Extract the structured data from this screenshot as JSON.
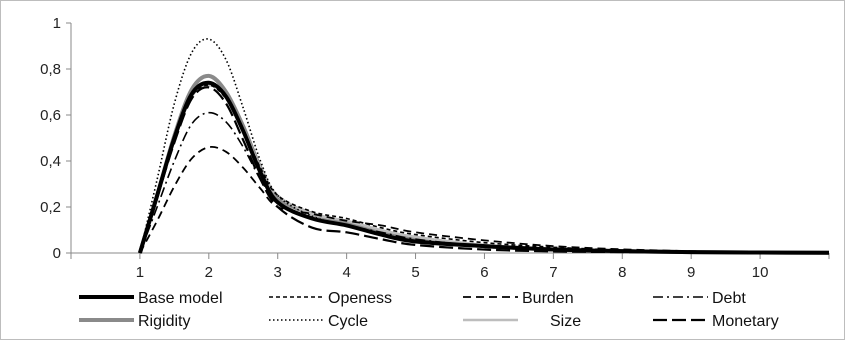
{
  "chart_data": {
    "type": "line",
    "title": "",
    "xlabel": "",
    "ylabel": "",
    "x_ticks": [
      "1",
      "2",
      "3",
      "4",
      "5",
      "6",
      "7",
      "8",
      "9",
      "10"
    ],
    "y_ticks": [
      "0",
      "0,2",
      "0,4",
      "0,6",
      "0,8",
      "1"
    ],
    "ylim": [
      0,
      1
    ],
    "xlim": [
      0,
      11
    ],
    "grid": false,
    "legend_position": "bottom",
    "series": [
      {
        "name": "Base model",
        "style": "solid-thick",
        "color": "#000000",
        "x": [
          1,
          1.25,
          1.5,
          1.75,
          2,
          2.25,
          2.5,
          2.75,
          3,
          3.5,
          4,
          4.5,
          5,
          6,
          7,
          8,
          9,
          10,
          11
        ],
        "y": [
          0,
          0.25,
          0.5,
          0.69,
          0.74,
          0.68,
          0.53,
          0.35,
          0.22,
          0.15,
          0.12,
          0.08,
          0.05,
          0.03,
          0.015,
          0.008,
          0.004,
          0.002,
          0.001
        ]
      },
      {
        "name": "Openess",
        "style": "short-dash",
        "color": "#000000",
        "x": [
          1,
          1.25,
          1.5,
          1.75,
          2,
          2.25,
          2.5,
          2.75,
          3,
          3.5,
          4,
          4.5,
          5,
          6,
          7,
          8,
          9,
          10,
          11
        ],
        "y": [
          0,
          0.24,
          0.49,
          0.68,
          0.73,
          0.67,
          0.53,
          0.37,
          0.25,
          0.18,
          0.15,
          0.11,
          0.08,
          0.045,
          0.025,
          0.013,
          0.007,
          0.004,
          0.002
        ]
      },
      {
        "name": "Burden",
        "style": "medium-dash",
        "color": "#000000",
        "x": [
          1,
          1.25,
          1.5,
          1.75,
          2,
          2.25,
          2.5,
          2.75,
          3,
          3.5,
          4,
          4.5,
          5,
          6,
          7,
          8,
          9,
          10,
          11
        ],
        "y": [
          0,
          0.14,
          0.29,
          0.41,
          0.46,
          0.44,
          0.37,
          0.28,
          0.2,
          0.17,
          0.14,
          0.12,
          0.09,
          0.055,
          0.03,
          0.016,
          0.008,
          0.004,
          0.002
        ]
      },
      {
        "name": "Debt",
        "style": "dash-dot",
        "color": "#000000",
        "x": [
          1,
          1.25,
          1.5,
          1.75,
          2,
          2.25,
          2.5,
          2.75,
          3,
          3.5,
          4,
          4.5,
          5,
          6,
          7,
          8,
          9,
          10,
          11
        ],
        "y": [
          0,
          0.2,
          0.4,
          0.56,
          0.61,
          0.57,
          0.46,
          0.32,
          0.22,
          0.15,
          0.12,
          0.09,
          0.06,
          0.03,
          0.015,
          0.008,
          0.004,
          0.002,
          0.001
        ]
      },
      {
        "name": "Rigidity",
        "style": "solid-thick",
        "color": "#8a8a8a",
        "x": [
          1,
          1.25,
          1.5,
          1.75,
          2,
          2.25,
          2.5,
          2.75,
          3,
          3.5,
          4,
          4.5,
          5,
          6,
          7,
          8,
          9,
          10,
          11
        ],
        "y": [
          0,
          0.25,
          0.51,
          0.71,
          0.77,
          0.7,
          0.55,
          0.37,
          0.24,
          0.17,
          0.13,
          0.09,
          0.06,
          0.03,
          0.016,
          0.008,
          0.004,
          0.002,
          0.001
        ]
      },
      {
        "name": "Cycle",
        "style": "dotted",
        "color": "#000000",
        "x": [
          1,
          1.25,
          1.5,
          1.75,
          2,
          2.25,
          2.5,
          2.75,
          3,
          3.5,
          4,
          4.5,
          5,
          6,
          7,
          8,
          9,
          10,
          11
        ],
        "y": [
          0,
          0.32,
          0.65,
          0.87,
          0.93,
          0.84,
          0.63,
          0.4,
          0.25,
          0.16,
          0.12,
          0.08,
          0.05,
          0.025,
          0.012,
          0.006,
          0.003,
          0.002,
          0.001
        ]
      },
      {
        "name": "Size",
        "style": "solid",
        "color": "#bdbdbd",
        "x": [
          1,
          1.25,
          1.5,
          1.75,
          2,
          2.25,
          2.5,
          2.75,
          3,
          3.5,
          4,
          4.5,
          5,
          6,
          7,
          8,
          9,
          10,
          11
        ],
        "y": [
          0,
          0.24,
          0.49,
          0.68,
          0.73,
          0.68,
          0.54,
          0.37,
          0.25,
          0.17,
          0.14,
          0.1,
          0.07,
          0.035,
          0.018,
          0.009,
          0.005,
          0.002,
          0.001
        ]
      },
      {
        "name": "Monetary",
        "style": "long-dash",
        "color": "#000000",
        "x": [
          1,
          1.25,
          1.5,
          1.75,
          2,
          2.25,
          2.5,
          2.75,
          3,
          3.5,
          4,
          4.5,
          5,
          6,
          7,
          8,
          9,
          10,
          11
        ],
        "y": [
          0,
          0.24,
          0.48,
          0.67,
          0.72,
          0.65,
          0.49,
          0.32,
          0.2,
          0.11,
          0.09,
          0.06,
          0.035,
          0.015,
          0.007,
          0.004,
          0.002,
          0.001,
          0.001
        ]
      }
    ]
  }
}
